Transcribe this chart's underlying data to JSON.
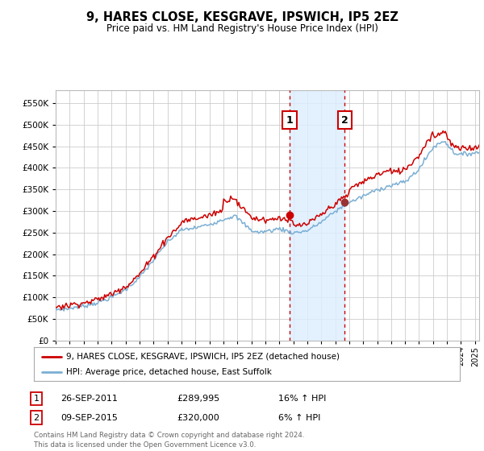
{
  "title": "9, HARES CLOSE, KESGRAVE, IPSWICH, IP5 2EZ",
  "subtitle": "Price paid vs. HM Land Registry's House Price Index (HPI)",
  "yticks": [
    0,
    50000,
    100000,
    150000,
    200000,
    250000,
    300000,
    350000,
    400000,
    450000,
    500000,
    550000
  ],
  "ylim": [
    0,
    580000
  ],
  "xlim_start": 1995,
  "xlim_end": 2025.3,
  "sale1_date": "26-SEP-2011",
  "sale1_price": 289995,
  "sale1_price_str": "£289,995",
  "sale1_label": "16% ↑ HPI",
  "sale2_date": "09-SEP-2015",
  "sale2_price": 320000,
  "sale2_price_str": "£320,000",
  "sale2_label": "6% ↑ HPI",
  "sale1_x": 2011.73,
  "sale2_x": 2015.68,
  "legend_line1": "9, HARES CLOSE, KESGRAVE, IPSWICH, IP5 2EZ (detached house)",
  "legend_line2": "HPI: Average price, detached house, East Suffolk",
  "footer": "Contains HM Land Registry data © Crown copyright and database right 2024.\nThis data is licensed under the Open Government Licence v3.0.",
  "price_color": "#cc0000",
  "hpi_color": "#7bafd4",
  "shade_color": "#ddeeff",
  "sale2_dot_color": "#993333",
  "background_color": "#ffffff",
  "grid_color": "#cccccc"
}
